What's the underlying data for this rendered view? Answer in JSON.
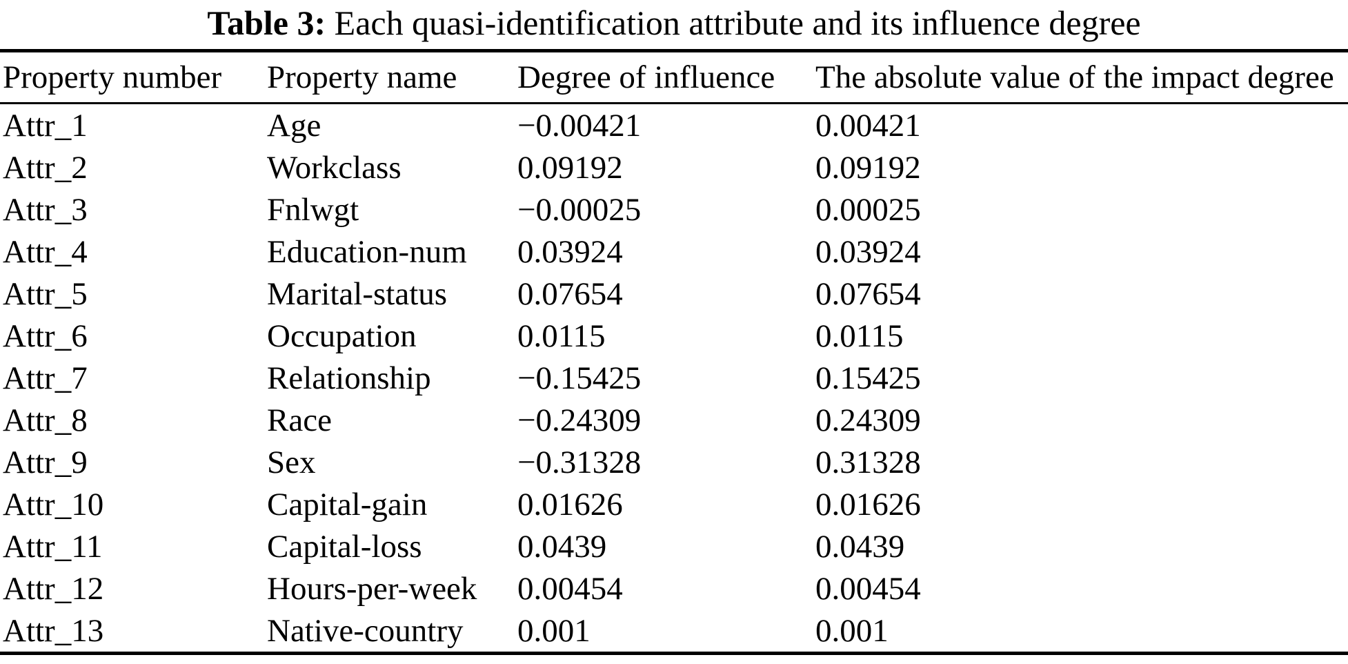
{
  "caption": {
    "label": "Table 3:",
    "text": "Each quasi-identification attribute and its influence degree"
  },
  "table": {
    "columns": [
      "Property number",
      "Property name",
      "Degree of influence",
      "The absolute value of the impact degree"
    ],
    "rows": [
      {
        "number": "Attr_1",
        "name": "Age",
        "influence": "−0.00421",
        "absolute": "0.00421"
      },
      {
        "number": "Attr_2",
        "name": "Workclass",
        "influence": "0.09192",
        "absolute": "0.09192"
      },
      {
        "number": "Attr_3",
        "name": "Fnlwgt",
        "influence": "−0.00025",
        "absolute": "0.00025"
      },
      {
        "number": "Attr_4",
        "name": "Education-num",
        "influence": "0.03924",
        "absolute": "0.03924"
      },
      {
        "number": "Attr_5",
        "name": "Marital-status",
        "influence": "0.07654",
        "absolute": "0.07654"
      },
      {
        "number": "Attr_6",
        "name": "Occupation",
        "influence": "0.0115",
        "absolute": "0.0115"
      },
      {
        "number": "Attr_7",
        "name": "Relationship",
        "influence": "−0.15425",
        "absolute": "0.15425"
      },
      {
        "number": "Attr_8",
        "name": "Race",
        "influence": "−0.24309",
        "absolute": "0.24309"
      },
      {
        "number": "Attr_9",
        "name": "Sex",
        "influence": "−0.31328",
        "absolute": "0.31328"
      },
      {
        "number": "Attr_10",
        "name": "Capital-gain",
        "influence": "0.01626",
        "absolute": "0.01626"
      },
      {
        "number": "Attr_11",
        "name": "Capital-loss",
        "influence": "0.0439",
        "absolute": "0.0439"
      },
      {
        "number": "Attr_12",
        "name": "Hours-per-week",
        "influence": "0.00454",
        "absolute": "0.00454"
      },
      {
        "number": "Attr_13",
        "name": "Native-country",
        "influence": "0.001",
        "absolute": "0.001"
      }
    ]
  }
}
